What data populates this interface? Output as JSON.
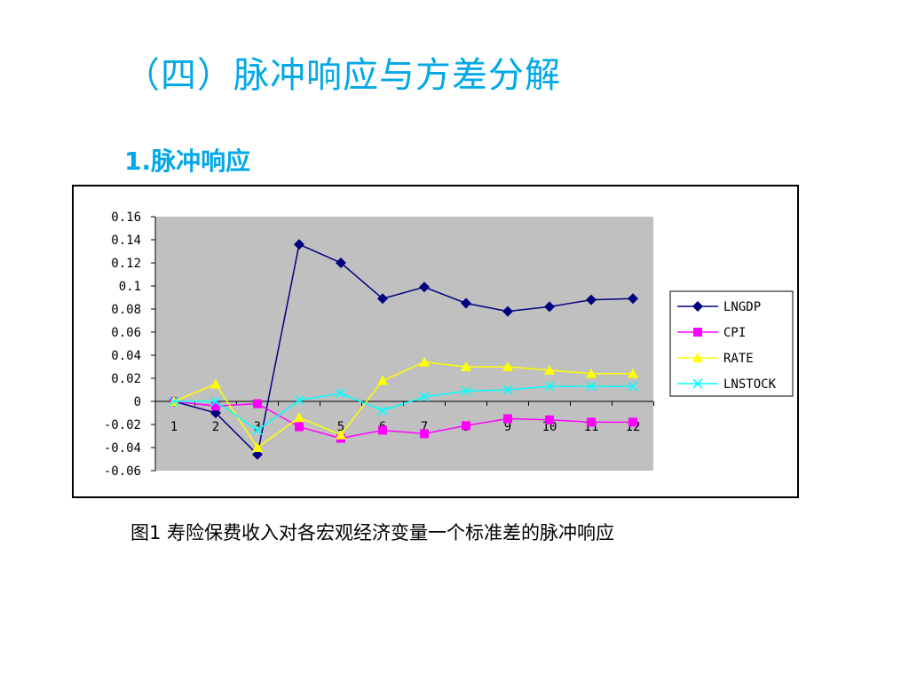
{
  "slide": {
    "title": "（四）脉冲响应与方差分解",
    "section_heading": "1.脉冲响应",
    "caption": "图1  寿险保费收入对各宏观经济变量一个标准差的脉冲响应"
  },
  "colors": {
    "plot_background": "#c0c0c0",
    "title": "#00a8e8"
  },
  "chart_data": {
    "type": "line",
    "title": "",
    "xlabel": "",
    "ylabel": "",
    "categories": [
      "1",
      "2",
      "3",
      "4",
      "5",
      "6",
      "7",
      "8",
      "9",
      "10",
      "11",
      "12"
    ],
    "y_ticks": [
      "0.16",
      "0.14",
      "0.12",
      "0.1",
      "0.08",
      "0.06",
      "0.04",
      "0.02",
      "0",
      "-0.02",
      "-0.04",
      "-0.06"
    ],
    "ylim": [
      -0.06,
      0.16
    ],
    "grid": false,
    "legend_position": "right",
    "series": [
      {
        "name": "LNGDP",
        "color": "#000080",
        "marker": "diamond",
        "values": [
          0,
          -0.01,
          -0.046,
          0.136,
          0.12,
          0.089,
          0.099,
          0.085,
          0.078,
          0.082,
          0.088,
          0.089
        ]
      },
      {
        "name": "CPI",
        "color": "#ff00ff",
        "marker": "square",
        "values": [
          0,
          -0.004,
          -0.002,
          -0.022,
          -0.032,
          -0.025,
          -0.028,
          -0.021,
          -0.015,
          -0.016,
          -0.018,
          -0.018
        ]
      },
      {
        "name": "RATE",
        "color": "#ffff00",
        "marker": "triangle",
        "values": [
          0,
          0.015,
          -0.04,
          -0.014,
          -0.029,
          0.018,
          0.034,
          0.03,
          0.03,
          0.027,
          0.024,
          0.024
        ]
      },
      {
        "name": "LNSTOCK",
        "color": "#00ffff",
        "marker": "x",
        "values": [
          0,
          0,
          -0.025,
          0.001,
          0.007,
          -0.008,
          0.004,
          0.009,
          0.01,
          0.013,
          0.013,
          0.013
        ]
      }
    ]
  }
}
